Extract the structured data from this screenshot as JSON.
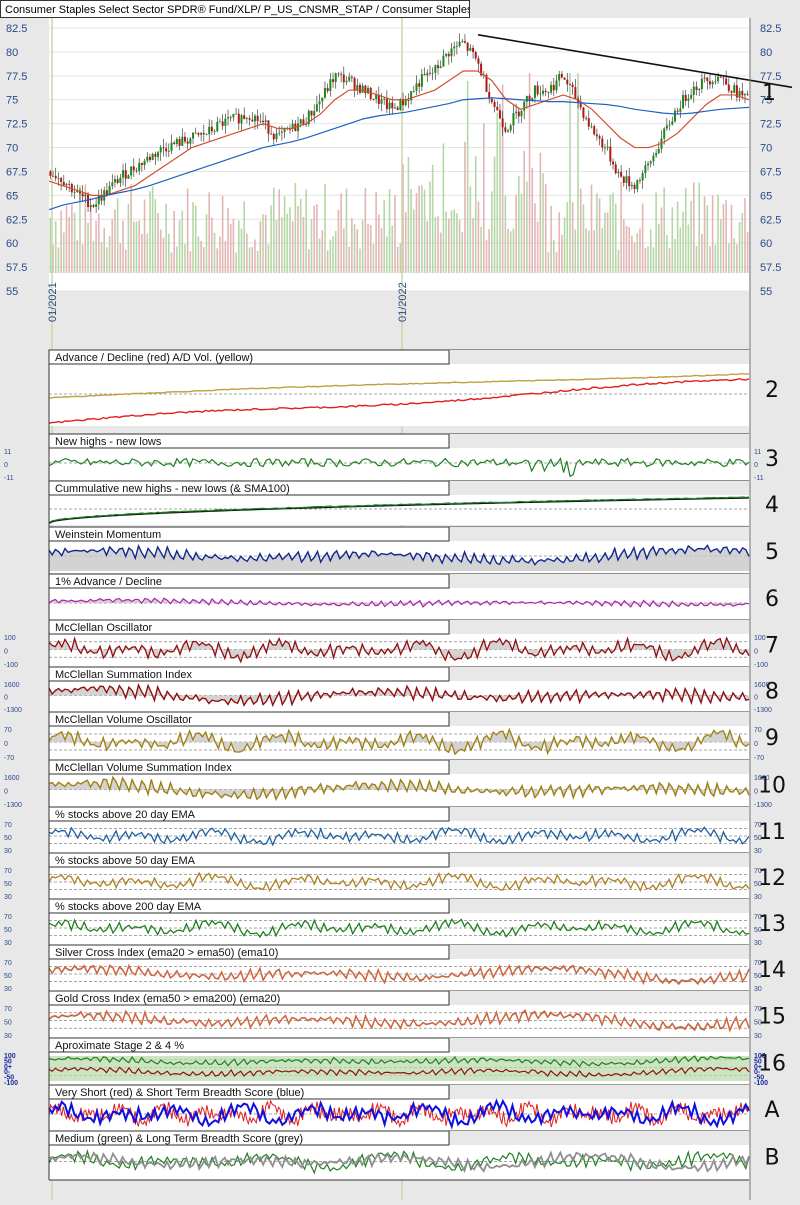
{
  "header": {
    "title": "Consumer Staples Select Sector SPDR® Fund/XLP/ P_US_CNSMR_STAP / Consumer Staples"
  },
  "chart_data": [
    {
      "type": "candlestick",
      "ylim": [
        55,
        82.5
      ],
      "y_ticks": [
        "82.5",
        "80",
        "77.5",
        "75",
        "72.5",
        "70",
        "67.5",
        "65",
        "62.5",
        "60",
        "57.5",
        "55"
      ],
      "x_ticks": [
        "01/2021",
        "01/2022"
      ],
      "price_label": "1",
      "series": [
        {
          "name": "close",
          "values": [
            67.5,
            66.5,
            65,
            64,
            65.5,
            67,
            68,
            69,
            70,
            70.5,
            71,
            71.5,
            72.5,
            73,
            73.5,
            72.5,
            71,
            72,
            73,
            75,
            77.5,
            77,
            76,
            75,
            74,
            75,
            77,
            78,
            80,
            81,
            79,
            75,
            72,
            74,
            76,
            76,
            77.5,
            75,
            72,
            70,
            67,
            66,
            68,
            71,
            74,
            76,
            77,
            77.5,
            76,
            75
          ]
        },
        {
          "name": "sma50",
          "values": [
            66.5,
            66,
            65.5,
            65,
            65,
            65.5,
            66,
            67,
            68,
            69,
            70,
            70.5,
            71,
            71.5,
            72,
            72.5,
            72,
            72,
            72.5,
            73.5,
            75,
            76,
            76,
            75.5,
            75,
            75,
            75.5,
            76,
            77,
            78,
            78,
            77,
            75,
            74,
            74.5,
            75,
            75.5,
            75,
            74,
            72.5,
            71,
            70,
            70,
            70.5,
            71.5,
            73,
            74.5,
            75.5,
            75.5,
            75
          ]
        },
        {
          "name": "sma200",
          "values": [
            63.5,
            64,
            64.3,
            64.6,
            65,
            65.3,
            65.6,
            66,
            66.5,
            67,
            67.5,
            68,
            68.5,
            69,
            69.5,
            70,
            70.3,
            70.6,
            71,
            71.5,
            72,
            72.5,
            73,
            73.3,
            73.5,
            73.7,
            74,
            74.3,
            74.6,
            75,
            75.1,
            75.2,
            75.1,
            75,
            74.9,
            74.8,
            74.8,
            74.7,
            74.6,
            74.5,
            74.3,
            74,
            73.8,
            73.6,
            73.5,
            73.6,
            73.8,
            74,
            74.1,
            74.2
          ]
        }
      ],
      "trendline": [
        [
          58,
          82
        ],
        [
          64,
          77
        ]
      ]
    },
    {
      "type": "line",
      "title": "Advance / Decline (red) A/D Vol. (yellow)",
      "label": "2",
      "series": [
        {
          "name": "A/D",
          "color": "#e02020"
        },
        {
          "name": "A/D Vol.",
          "color": "#c0a040"
        }
      ]
    },
    {
      "type": "line",
      "title": "New highs - new lows",
      "label": "3",
      "y_ticks": [
        "11",
        "0",
        "-11"
      ],
      "series": [
        {
          "name": "nhnl",
          "color": "#208020"
        }
      ]
    },
    {
      "type": "line",
      "title": "Cummulative new highs - new lows (& SMA100)",
      "label": "4",
      "series": [
        {
          "name": "cum",
          "color": "#208020"
        },
        {
          "name": "SMA100",
          "color": "#111111"
        }
      ]
    },
    {
      "type": "area",
      "title": "Weinstein Momentum",
      "label": "5",
      "series": [
        {
          "name": "wm",
          "color": "#102890"
        }
      ]
    },
    {
      "type": "area",
      "title": "1% Advance / Decline",
      "label": "6",
      "series": [
        {
          "name": "ad1",
          "color": "#b020b0"
        }
      ]
    },
    {
      "type": "area",
      "title": "McClellan Oscillator",
      "label": "7",
      "y_ticks": [
        "100",
        "0",
        "-100"
      ],
      "series": [
        {
          "name": "mo",
          "color": "#901010"
        }
      ]
    },
    {
      "type": "area",
      "title": "McClellan Summation Index",
      "label": "8",
      "y_ticks": [
        "1600",
        "0",
        "-1300"
      ],
      "series": [
        {
          "name": "msi",
          "color": "#901010"
        }
      ]
    },
    {
      "type": "area",
      "title": "McClellan Volume Oscillator",
      "label": "9",
      "y_ticks": [
        "70",
        "0",
        "-70"
      ],
      "series": [
        {
          "name": "mvo",
          "color": "#a08010"
        }
      ]
    },
    {
      "type": "area",
      "title": "McClellan Volume Summation Index",
      "label": "10",
      "y_ticks": [
        "1600",
        "0",
        "-1300"
      ],
      "series": [
        {
          "name": "mvsi",
          "color": "#a08010"
        }
      ]
    },
    {
      "type": "line",
      "title": "% stocks above 20 day EMA",
      "label": "11",
      "y_ticks": [
        "70",
        "50",
        "30"
      ],
      "series": [
        {
          "name": "ema20",
          "color": "#2060a0"
        }
      ]
    },
    {
      "type": "line",
      "title": "% stocks above 50 day EMA",
      "label": "12",
      "y_ticks": [
        "70",
        "50",
        "30"
      ],
      "series": [
        {
          "name": "ema50",
          "color": "#b08020"
        }
      ]
    },
    {
      "type": "line",
      "title": "% stocks above 200 day EMA",
      "label": "13",
      "y_ticks": [
        "70",
        "50",
        "30"
      ],
      "series": [
        {
          "name": "ema200",
          "color": "#208020"
        }
      ]
    },
    {
      "type": "line",
      "title": "Silver Cross Index (ema20 > ema50) (ema10)",
      "label": "14",
      "y_ticks": [
        "70",
        "50",
        "30"
      ],
      "series": [
        {
          "name": "sci",
          "color": "#e06030"
        },
        {
          "name": "ema10",
          "color": "#808080"
        }
      ]
    },
    {
      "type": "line",
      "title": "Gold Cross Index (ema50 > ema200) (ema20)",
      "label": "15",
      "y_ticks": [
        "70",
        "50",
        "30"
      ],
      "series": [
        {
          "name": "gci",
          "color": "#e06030"
        },
        {
          "name": "ema20",
          "color": "#808080"
        }
      ]
    },
    {
      "type": "line",
      "title": "Aproximate Stage 2 & 4 %",
      "label": "16",
      "y_ticks": [
        "100",
        "50",
        "0+",
        "0-",
        "-50",
        "-100"
      ],
      "series": [
        {
          "name": "stage2",
          "color": "#208020"
        },
        {
          "name": "stage4",
          "color": "#901010"
        }
      ]
    },
    {
      "type": "line",
      "title": "Very Short (red) & Short Term Breadth Score (blue)",
      "label": "A",
      "series": [
        {
          "name": "very short",
          "color": "#e02020"
        },
        {
          "name": "short",
          "color": "#1010e0"
        }
      ]
    },
    {
      "type": "line",
      "title": "Medium (green) & Long Term Breadth Score (grey)",
      "label": "B",
      "series": [
        {
          "name": "medium",
          "color": "#208020"
        },
        {
          "name": "long",
          "color": "#909090"
        }
      ]
    }
  ]
}
